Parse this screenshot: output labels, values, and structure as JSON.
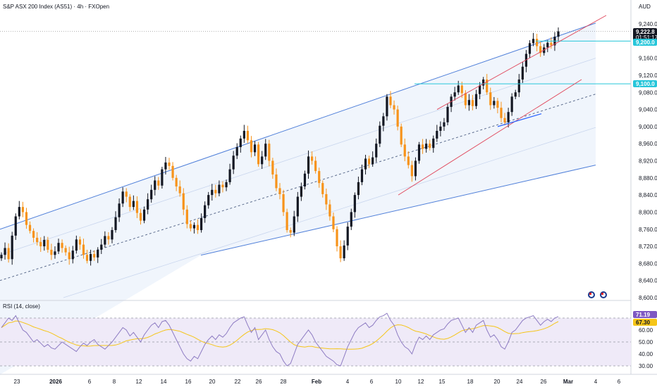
{
  "header": {
    "title": "S&P ASX 200 Index (AS51) · 4h · FXOpen",
    "currency": "AUD"
  },
  "colors": {
    "candle_up": "#131722",
    "candle_down": "#f7931a",
    "channel_line": "#4f7fd9",
    "channel_fill": "#eaf1fb",
    "red_channel": "#e0455a",
    "horizontal": "#26c6da",
    "rsi_line": "#8e7cc3",
    "rsi_ma": "#f5c518",
    "rsi_band": "#efeaf8",
    "dark_badge": "#131722",
    "cyan_badge": "#26c6da",
    "violet_badge": "#7e57c2",
    "yellow_badge": "#f5c518"
  },
  "price_axis": {
    "ticks": [
      "9,240.0",
      "9,160.0",
      "9,120.0",
      "9,080.0",
      "9,040.0",
      "9,000.0",
      "8,960.0",
      "8,920.0",
      "8,880.0",
      "8,840.0",
      "8,800.0",
      "8,760.0",
      "8,720.0",
      "8,680.0",
      "8,640.0",
      "8,600.0"
    ],
    "last_price": "9,222.8",
    "countdown": "01:51:17",
    "level_high": "9,200.0",
    "level_mid": "9,100.0"
  },
  "rsi": {
    "title": "RSI (14, close)",
    "ticks": [
      "60.00",
      "50.00",
      "40.00",
      "30.00"
    ],
    "value": "71.19",
    "ma_value": "67.30"
  },
  "time_axis": {
    "labels": [
      "23",
      "2026",
      "6",
      "8",
      "12",
      "14",
      "16",
      "20",
      "22",
      "26",
      "28",
      "Feb",
      "4",
      "6",
      "10",
      "12",
      "15",
      "18",
      "20",
      "24",
      "26",
      "Mar",
      "4",
      "6"
    ]
  },
  "icons": [
    "flag-au-icon",
    "flag-au-icon"
  ],
  "chart_data": {
    "type": "candlestick",
    "title": "S&P ASX 200 Index (AS51) · 4h · FXOpen",
    "x_range": [
      "23",
      "6"
    ],
    "y_range": [
      8600,
      9250
    ],
    "closes": [
      8700,
      8716,
      8690,
      8745,
      8790,
      8812,
      8800,
      8770,
      8756,
      8740,
      8730,
      8720,
      8735,
      8712,
      8700,
      8708,
      8728,
      8716,
      8706,
      8690,
      8710,
      8736,
      8724,
      8700,
      8686,
      8702,
      8694,
      8712,
      8724,
      8744,
      8736,
      8758,
      8788,
      8820,
      8848,
      8836,
      8812,
      8826,
      8798,
      8780,
      8806,
      8830,
      8852,
      8874,
      8862,
      8900,
      8916,
      8908,
      8880,
      8860,
      8844,
      8806,
      8772,
      8762,
      8770,
      8758,
      8786,
      8816,
      8840,
      8852,
      8844,
      8864,
      8858,
      8870,
      8900,
      8932,
      8952,
      8972,
      8990,
      8968,
      8940,
      8958,
      8912,
      8930,
      8960,
      8920,
      8888,
      8856,
      8842,
      8800,
      8758,
      8752,
      8790,
      8836,
      8860,
      8890,
      8930,
      8920,
      8896,
      8868,
      8842,
      8818,
      8790,
      8760,
      8720,
      8692,
      8722,
      8766,
      8800,
      8840,
      8870,
      8900,
      8925,
      8912,
      8928,
      8960,
      9002,
      9024,
      9070,
      9050,
      9040,
      9000,
      8958,
      8930,
      8910,
      8884,
      8920,
      8958,
      8948,
      8960,
      8950,
      8972,
      8990,
      9000,
      9010,
      9046,
      9070,
      9080,
      9096,
      9078,
      9050,
      9062,
      9048,
      9076,
      9096,
      9110,
      9080,
      9050,
      9060,
      9044,
      9020,
      9010,
      9034,
      9070,
      9080,
      9110,
      9140,
      9170,
      9195,
      9205,
      9188,
      9172,
      9185,
      9196,
      9190,
      9210,
      9222.8
    ],
    "channel": {
      "upper": [
        [
          0,
          8760
        ],
        [
          845,
          9242
        ]
      ],
      "lower": [
        [
          285,
          8592
        ],
        [
          845,
          8910
        ]
      ],
      "mid": [
        [
          0,
          8640
        ],
        [
          845,
          9076
        ]
      ]
    },
    "horizontal_levels": [
      9200,
      9100
    ],
    "rsi": {
      "range": [
        30,
        75
      ],
      "levels": [
        70,
        50,
        30
      ],
      "values": [
        62,
        66,
        70,
        68,
        72,
        66,
        60,
        58,
        54,
        50,
        52,
        49,
        46,
        48,
        45,
        44,
        47,
        50,
        48,
        46,
        44,
        42,
        46,
        49,
        47,
        50,
        52,
        48,
        46,
        44,
        47,
        50,
        54,
        58,
        62,
        60,
        55,
        58,
        54,
        50,
        56,
        60,
        64,
        66,
        62,
        67,
        68,
        64,
        58,
        52,
        46,
        40,
        36,
        34,
        38,
        36,
        42,
        48,
        52,
        55,
        52,
        56,
        54,
        57,
        62,
        66,
        68,
        70,
        71,
        64,
        58,
        62,
        52,
        56,
        60,
        52,
        46,
        42,
        40,
        34,
        30,
        32,
        40,
        48,
        52,
        56,
        60,
        56,
        50,
        46,
        42,
        38,
        36,
        34,
        31,
        30,
        38,
        46,
        52,
        58,
        62,
        64,
        66,
        62,
        64,
        68,
        71,
        72,
        74,
        68,
        64,
        56,
        50,
        46,
        44,
        40,
        48,
        54,
        52,
        55,
        52,
        56,
        58,
        60,
        61,
        65,
        68,
        69,
        70,
        64,
        58,
        62,
        58,
        64,
        66,
        68,
        60,
        54,
        56,
        52,
        46,
        44,
        50,
        58,
        60,
        64,
        68,
        70,
        71,
        72,
        68,
        64,
        67,
        69,
        67,
        70,
        71.19
      ],
      "last": 71.19,
      "ma_last": 67.3
    }
  }
}
